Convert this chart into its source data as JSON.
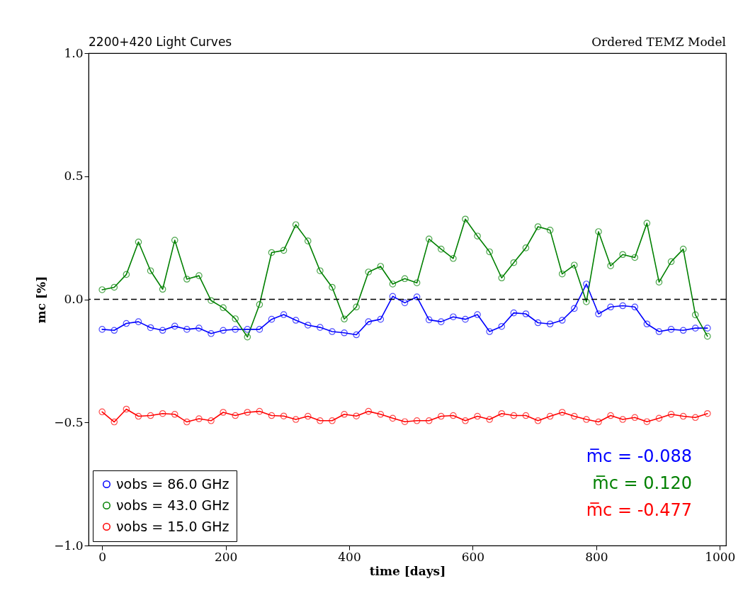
{
  "chart_data": {
    "type": "line",
    "title": "2200+420  Light Curves",
    "subtitle": "Ordered TEMZ Model",
    "xlabel": "time [days]",
    "ylabel": "mc [%]",
    "x": [
      0,
      19.6,
      39.2,
      58.8,
      78.4,
      98,
      117.6,
      137.2,
      156.8,
      176.4,
      196,
      215.6,
      235.2,
      254.8,
      274.4,
      294,
      313.6,
      333.2,
      352.8,
      372.4,
      392,
      411.6,
      431.2,
      450.8,
      470.4,
      490,
      509.6,
      529.2,
      548.8,
      568.4,
      588,
      607.6,
      627.2,
      646.8,
      666.4,
      686,
      705.6,
      725.2,
      744.8,
      764.4,
      784,
      803.6,
      823.2,
      842.8,
      862.4,
      882,
      901.6,
      921.2,
      940.8,
      960.4,
      980
    ],
    "series": [
      {
        "name": "νobs = 86.0 GHz",
        "color": "#0000ff",
        "values": [
          -0.122,
          -0.126,
          -0.098,
          -0.091,
          -0.115,
          -0.126,
          -0.109,
          -0.122,
          -0.117,
          -0.139,
          -0.126,
          -0.122,
          -0.122,
          -0.122,
          -0.081,
          -0.062,
          -0.085,
          -0.105,
          -0.114,
          -0.131,
          -0.136,
          -0.144,
          -0.091,
          -0.081,
          0.012,
          -0.014,
          0.01,
          -0.083,
          -0.091,
          -0.071,
          -0.081,
          -0.062,
          -0.131,
          -0.11,
          -0.055,
          -0.059,
          -0.095,
          -0.1,
          -0.085,
          -0.037,
          0.062,
          -0.059,
          -0.031,
          -0.026,
          -0.031,
          -0.1,
          -0.131,
          -0.122,
          -0.126,
          -0.117,
          -0.117
        ]
      },
      {
        "name": "νobs = 43.0 GHz",
        "color": "#008000",
        "values": [
          0.039,
          0.049,
          0.101,
          0.233,
          0.116,
          0.041,
          0.24,
          0.082,
          0.096,
          -0.005,
          -0.034,
          -0.079,
          -0.153,
          -0.021,
          0.19,
          0.199,
          0.303,
          0.237,
          0.116,
          0.049,
          -0.08,
          -0.031,
          0.111,
          0.134,
          0.062,
          0.084,
          0.067,
          0.245,
          0.204,
          0.166,
          0.326,
          0.257,
          0.193,
          0.087,
          0.149,
          0.209,
          0.295,
          0.281,
          0.103,
          0.139,
          -0.01,
          0.275,
          0.136,
          0.182,
          0.17,
          0.309,
          0.07,
          0.153,
          0.204,
          -0.063,
          -0.15
        ]
      },
      {
        "name": "νobs = 15.0 GHz",
        "color": "#ff0000",
        "values": [
          -0.457,
          -0.498,
          -0.446,
          -0.475,
          -0.472,
          -0.464,
          -0.467,
          -0.498,
          -0.485,
          -0.493,
          -0.459,
          -0.472,
          -0.459,
          -0.455,
          -0.472,
          -0.474,
          -0.488,
          -0.475,
          -0.493,
          -0.493,
          -0.467,
          -0.474,
          -0.455,
          -0.467,
          -0.483,
          -0.497,
          -0.493,
          -0.493,
          -0.475,
          -0.472,
          -0.493,
          -0.475,
          -0.488,
          -0.464,
          -0.472,
          -0.472,
          -0.493,
          -0.475,
          -0.459,
          -0.475,
          -0.488,
          -0.498,
          -0.472,
          -0.488,
          -0.48,
          -0.497,
          -0.483,
          -0.467,
          -0.475,
          -0.48,
          -0.464
        ]
      }
    ],
    "xlim": [
      -22,
      1010
    ],
    "xticks": [
      0,
      200,
      400,
      600,
      800,
      1000
    ],
    "ylim": [
      -1,
      1
    ],
    "yticks": [
      {
        "value": -1,
        "label": "−1.0"
      },
      {
        "value": -0.5,
        "label": "−0.5"
      },
      {
        "value": 0,
        "label": "0.0"
      },
      {
        "value": 0.5,
        "label": "0.5"
      },
      {
        "value": 1,
        "label": "1.0"
      }
    ],
    "ref_lines": [
      {
        "axis": "y",
        "value": 0,
        "color": "#000000",
        "line_style": "dashed"
      }
    ],
    "annotations": [
      "m̅c =  -0.088",
      "m̅c =  0.120",
      "m̅c =  -0.477"
    ],
    "legend": "bottom left",
    "marker": "circle",
    "line_style": "solid",
    "grid": false
  }
}
